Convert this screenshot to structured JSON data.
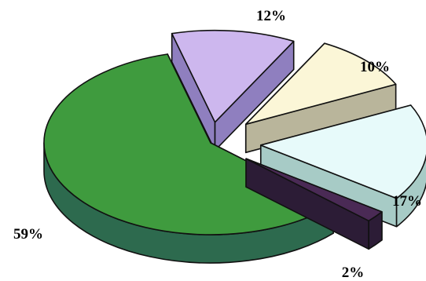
{
  "chart_data": {
    "type": "pie",
    "style": "3d-exploded",
    "legend": "none",
    "slices": [
      {
        "label": "12%",
        "value": 12,
        "color": "#cdb7ee",
        "side": "#8f7fbf"
      },
      {
        "label": "10%",
        "value": 10,
        "color": "#fbf6d7",
        "side": "#b9b59b"
      },
      {
        "label": "17%",
        "value": 17,
        "color": "#e7fafa",
        "side": "#a7cbc6"
      },
      {
        "label": "2%",
        "value": 2,
        "color": "#4a2a55",
        "side": "#2c1c36"
      },
      {
        "label": "59%",
        "value": 59,
        "color": "#3f9b3e",
        "side": "#2d6a4e"
      }
    ]
  }
}
